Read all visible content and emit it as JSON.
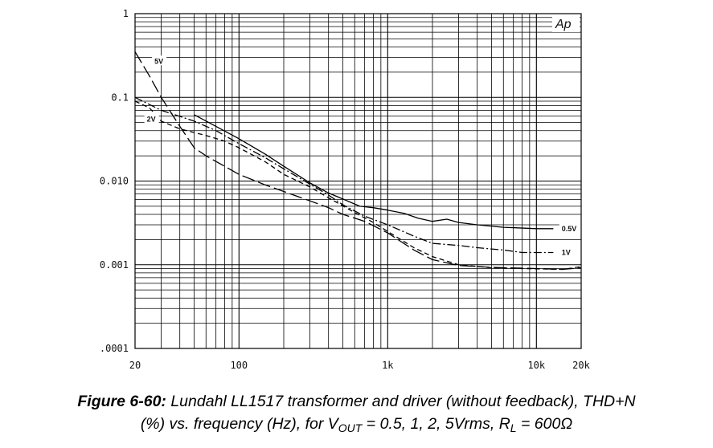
{
  "chart_data": {
    "type": "line",
    "x_scale": "log",
    "y_scale": "log",
    "xlim": [
      20,
      20000
    ],
    "ylim": [
      0.0001,
      1
    ],
    "grid": true,
    "corner_label": "Ap",
    "x_ticks": [
      {
        "value": 20,
        "label": "20"
      },
      {
        "value": 100,
        "label": "100"
      },
      {
        "value": 1000,
        "label": "1k"
      },
      {
        "value": 10000,
        "label": "10k"
      },
      {
        "value": 20000,
        "label": "20k"
      }
    ],
    "y_ticks": [
      {
        "value": 1,
        "label": "1"
      },
      {
        "value": 0.1,
        "label": "0.1"
      },
      {
        "value": 0.01,
        "label": "0.010"
      },
      {
        "value": 0.001,
        "label": "0.001"
      },
      {
        "value": 0.0001,
        "label": ".0001"
      }
    ],
    "series": [
      {
        "name": "0.5V",
        "style": "solid",
        "points": [
          [
            50,
            0.062
          ],
          [
            70,
            0.045
          ],
          [
            100,
            0.032
          ],
          [
            150,
            0.021
          ],
          [
            200,
            0.015
          ],
          [
            300,
            0.0095
          ],
          [
            400,
            0.0072
          ],
          [
            500,
            0.0061
          ],
          [
            650,
            0.005
          ],
          [
            800,
            0.0048
          ],
          [
            1000,
            0.0045
          ],
          [
            1300,
            0.0041
          ],
          [
            1600,
            0.0036
          ],
          [
            2000,
            0.0033
          ],
          [
            2500,
            0.0035
          ],
          [
            3000,
            0.0032
          ],
          [
            4000,
            0.003
          ],
          [
            6000,
            0.0028
          ],
          [
            10000,
            0.0027
          ],
          [
            13000,
            0.0027
          ]
        ],
        "label_at": [
          14800,
          0.0027
        ]
      },
      {
        "name": "1V",
        "style": "dash-dot",
        "points": [
          [
            20,
            0.1
          ],
          [
            30,
            0.07
          ],
          [
            50,
            0.052
          ],
          [
            70,
            0.04
          ],
          [
            100,
            0.028
          ],
          [
            150,
            0.019
          ],
          [
            200,
            0.014
          ],
          [
            300,
            0.0092
          ],
          [
            400,
            0.0068
          ],
          [
            500,
            0.0052
          ],
          [
            700,
            0.0038
          ],
          [
            1000,
            0.003
          ],
          [
            1500,
            0.0022
          ],
          [
            2000,
            0.0018
          ],
          [
            3000,
            0.0017
          ],
          [
            4000,
            0.0016
          ],
          [
            6000,
            0.0015
          ],
          [
            8000,
            0.0014
          ],
          [
            13000,
            0.0014
          ]
        ],
        "label_at": [
          14800,
          0.0014
        ]
      },
      {
        "name": "2V",
        "style": "dashed",
        "points": [
          [
            20,
            0.09
          ],
          [
            25,
            0.075
          ],
          [
            30,
            0.052
          ],
          [
            40,
            0.042
          ],
          [
            60,
            0.035
          ],
          [
            80,
            0.03
          ],
          [
            100,
            0.025
          ],
          [
            150,
            0.017
          ],
          [
            200,
            0.012
          ],
          [
            300,
            0.0085
          ],
          [
            400,
            0.0063
          ],
          [
            600,
            0.0042
          ],
          [
            800,
            0.0032
          ],
          [
            1000,
            0.0025
          ],
          [
            1500,
            0.0016
          ],
          [
            2000,
            0.00125
          ],
          [
            3000,
            0.001
          ],
          [
            5000,
            0.00092
          ],
          [
            8000,
            0.0009
          ],
          [
            15000,
            0.00088
          ],
          [
            20000,
            0.00095
          ]
        ],
        "label_at": [
          24,
          0.055
        ]
      },
      {
        "name": "5V",
        "style": "long-dash",
        "points": [
          [
            20,
            0.35
          ],
          [
            25,
            0.18
          ],
          [
            30,
            0.1
          ],
          [
            40,
            0.045
          ],
          [
            50,
            0.025
          ],
          [
            60,
            0.02
          ],
          [
            80,
            0.015
          ],
          [
            100,
            0.012
          ],
          [
            150,
            0.009
          ],
          [
            200,
            0.0075
          ],
          [
            300,
            0.0058
          ],
          [
            400,
            0.0048
          ],
          [
            500,
            0.004
          ],
          [
            700,
            0.0033
          ],
          [
            1000,
            0.0024
          ],
          [
            1500,
            0.0015
          ],
          [
            2000,
            0.00115
          ],
          [
            3000,
            0.00098
          ],
          [
            5000,
            0.00093
          ],
          [
            10000,
            0.0009
          ],
          [
            15000,
            0.00088
          ],
          [
            20000,
            0.00092
          ]
        ],
        "label_at": [
          27,
          0.27
        ]
      }
    ]
  },
  "caption": {
    "figure_number": "Figure 6-60:",
    "line1_text": " Lundahl LL1517 transformer and driver (without feedback),  THD+N",
    "line2_part1": "(%) vs. frequency (Hz), for V",
    "line2_sub1": "OUT",
    "line2_part2": " = 0.5, 1, 2, 5Vrms, R",
    "line2_sub2": "L",
    "line2_part3": " = 600Ω"
  }
}
